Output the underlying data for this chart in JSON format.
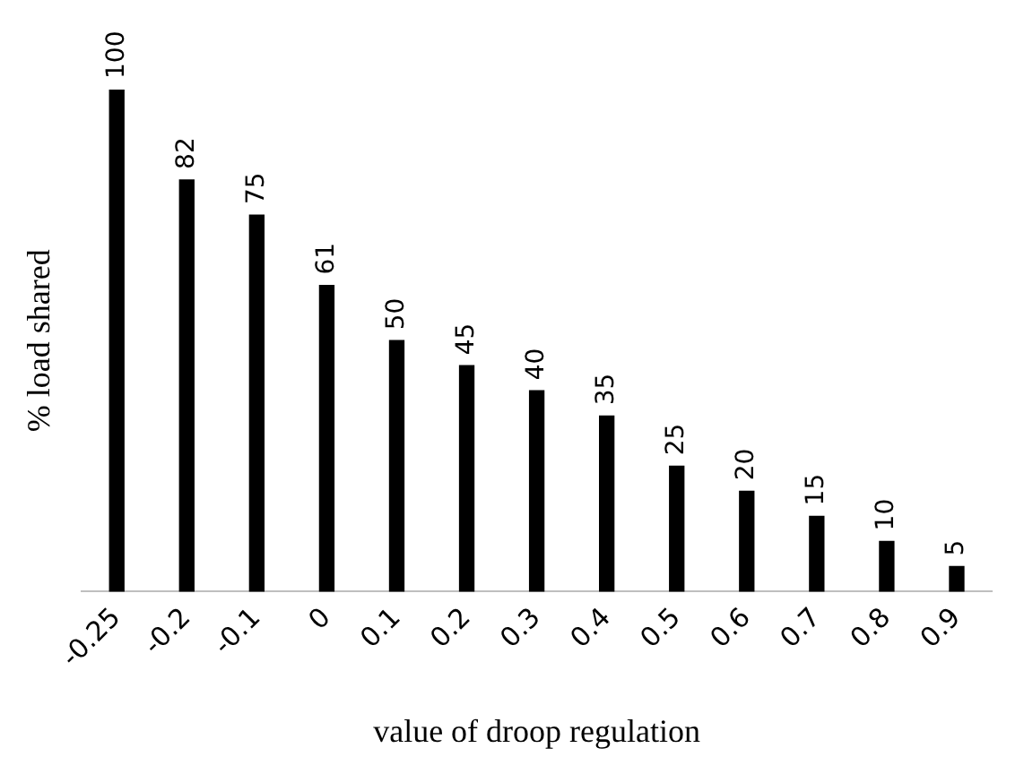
{
  "chart_data": {
    "type": "bar",
    "xlabel": "value of droop regulation",
    "ylabel": "% load shared",
    "categories": [
      "-0.25",
      "-0.2",
      "-0.1",
      "0",
      "0.1",
      "0.2",
      "0.3",
      "0.4",
      "0.5",
      "0.6",
      "0.7",
      "0.8",
      "0.9"
    ],
    "values": [
      100,
      82,
      75,
      61,
      50,
      45,
      40,
      35,
      25,
      20,
      15,
      10,
      5
    ],
    "color": "#000000",
    "data_labels": true,
    "grid": false,
    "legend": false
  }
}
